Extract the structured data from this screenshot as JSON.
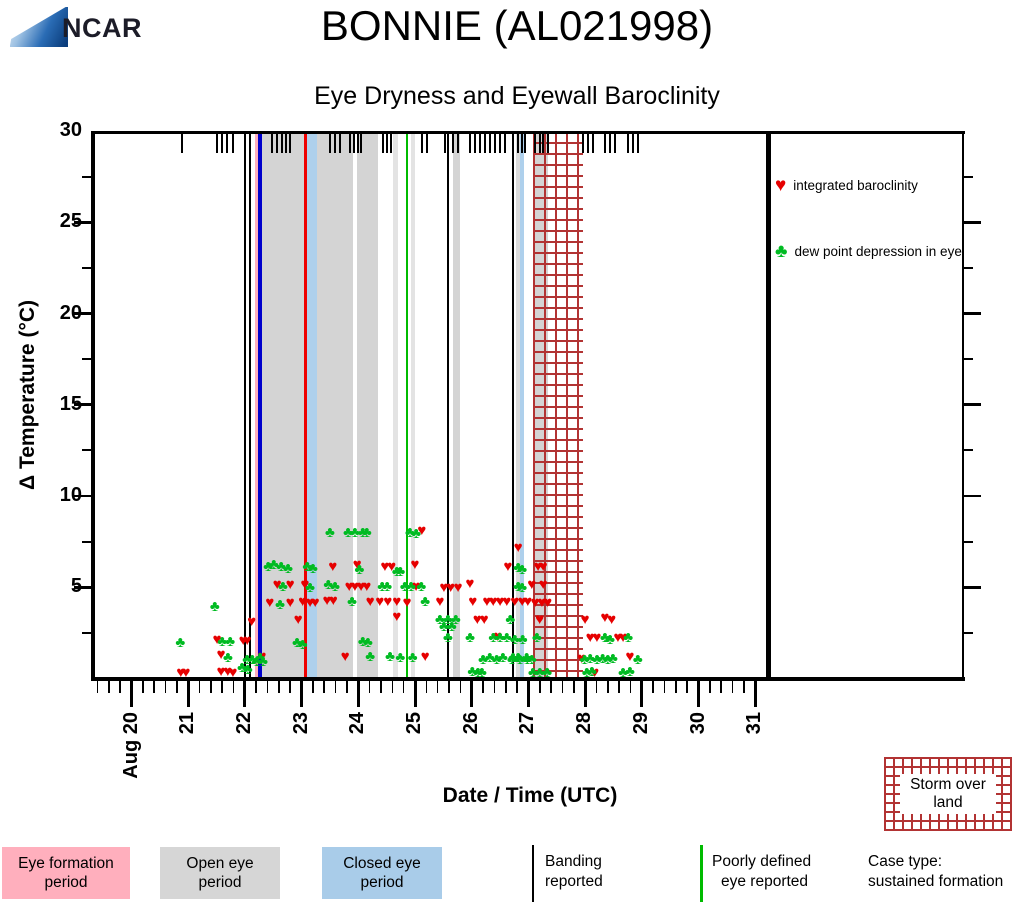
{
  "header": {
    "logo_text": "NCAR",
    "title": "BONNIE (AL021998)",
    "subtitle": "Eye Dryness and Eyewall Baroclinity"
  },
  "legend": {
    "items": [
      {
        "symbol": "heart",
        "label": "integrated baroclinity",
        "color": "#e60000"
      },
      {
        "symbol": "club",
        "label": "dew point depression in eye",
        "color": "#00bb22"
      }
    ]
  },
  "storm_box": {
    "lines": [
      "Storm over",
      "land"
    ],
    "hatch_color": "#b23333"
  },
  "bottom_legend": {
    "items": [
      {
        "type": "box",
        "color": "#ffafbd",
        "lines": [
          "Eye formation",
          "period"
        ]
      },
      {
        "type": "box",
        "color": "#d6d6d6",
        "lines": [
          "Open eye",
          "period"
        ]
      },
      {
        "type": "box",
        "color": "#a9cce9",
        "lines": [
          "Closed eye",
          "period"
        ]
      },
      {
        "type": "line",
        "color": "#000000",
        "lines": [
          "Banding",
          "reported"
        ]
      },
      {
        "type": "line",
        "color": "#00bb00",
        "lines": [
          "Poorly defined",
          "eye reported"
        ]
      },
      {
        "type": "text",
        "color": "",
        "lines": [
          "Case type:",
          "sustained formation"
        ]
      }
    ]
  },
  "chart_data": {
    "type": "scatter",
    "title": "BONNIE (AL021998)",
    "subtitle": "Eye Dryness and Eyewall Baroclinity",
    "xlabel": "Date / Time (UTC)",
    "ylabel": "Δ Temperature (°C)",
    "ylim": [
      0,
      30
    ],
    "y_major_step": 5,
    "y_minor_step": 2.5,
    "y_tick_labels": [
      "5",
      "10",
      "15",
      "20",
      "25",
      "30"
    ],
    "x_day_labels": [
      "Aug 20",
      "21",
      "22",
      "23",
      "24",
      "25",
      "26",
      "27",
      "28",
      "29",
      "30",
      "31"
    ],
    "x_minor_per_day": 5,
    "grid": false,
    "legend_position": "right-inside",
    "bands": [
      {
        "kind": "eye_formation_period",
        "from_day": 2.18,
        "to_day": 2.25,
        "color": "#ffafbd"
      },
      {
        "kind": "open_eye_period",
        "from_day": 2.31,
        "to_day": 3.9,
        "color": "#d4d4d4"
      },
      {
        "kind": "open_eye_period",
        "from_day": 3.97,
        "to_day": 4.35,
        "color": "#d4d4d4"
      },
      {
        "kind": "open_eye_period",
        "from_day": 4.61,
        "to_day": 4.7,
        "color": "#e3e3e3"
      },
      {
        "kind": "open_eye_period",
        "from_day": 4.93,
        "to_day": 5.0,
        "color": "#e3e3e3"
      },
      {
        "kind": "open_eye_period",
        "from_day": 5.67,
        "to_day": 5.79,
        "color": "#d4d4d4"
      },
      {
        "kind": "open_eye_period",
        "from_day": 6.79,
        "to_day": 6.86,
        "color": "#dcdcdc"
      },
      {
        "kind": "open_eye_period",
        "from_day": 7.08,
        "to_day": 7.34,
        "color": "#d4d4d4"
      },
      {
        "kind": "closed_eye_period",
        "from_day": 3.09,
        "to_day": 3.27,
        "color": "#aed0ec"
      },
      {
        "kind": "closed_eye_period",
        "from_day": 6.86,
        "to_day": 6.93,
        "color": "#aed0ec"
      }
    ],
    "event_lines": [
      {
        "name": "banding-line",
        "day": 2.0,
        "color": "#000000",
        "width": 2
      },
      {
        "name": "banding-line",
        "day": 2.09,
        "color": "#000000",
        "width": 2
      },
      {
        "name": "banding-line",
        "day": 5.58,
        "color": "#000000",
        "width": 2
      },
      {
        "name": "banding-line",
        "day": 6.73,
        "color": "#000000",
        "width": 2
      },
      {
        "name": "blue-event-line",
        "day": 2.275,
        "color": "#0000cc",
        "width": 4
      },
      {
        "name": "red-event-line",
        "day": 3.06,
        "color": "#ee0000",
        "width": 3
      },
      {
        "name": "poorly-defined-eye-line",
        "day": 4.855,
        "color": "#00bb00",
        "width": 1.6
      },
      {
        "name": "case-end-line",
        "day": 11.226,
        "color": "#000000",
        "width": 5
      }
    ],
    "storm_over_land_region": {
      "from_day": 7.08,
      "to_day": 7.97,
      "hatch_color": "#b23333"
    },
    "observation_rug_days": [
      0.89,
      1.51,
      1.6,
      1.68,
      1.79,
      2.48,
      2.57,
      2.65,
      2.72,
      2.8,
      3.5,
      3.59,
      3.68,
      3.85,
      3.92,
      3.99,
      4.05,
      4.44,
      4.51,
      4.58,
      5.12,
      5.21,
      5.53,
      5.67,
      5.76,
      5.97,
      6.06,
      6.15,
      6.23,
      6.32,
      6.41,
      6.5,
      6.59,
      6.82,
      6.89,
      6.94,
      7.12,
      7.2,
      7.26,
      7.34,
      7.97,
      8.05,
      8.14,
      8.35,
      8.44,
      8.53,
      8.76,
      8.85,
      8.93
    ],
    "series": [
      {
        "name": "integrated baroclinity",
        "symbol": "heart",
        "color": "#e60000",
        "points": [
          [
            0.87,
            0.3
          ],
          [
            0.96,
            0.3
          ],
          [
            1.51,
            2.1
          ],
          [
            1.58,
            1.3
          ],
          [
            1.58,
            0.35
          ],
          [
            1.7,
            0.35
          ],
          [
            1.79,
            0.3
          ],
          [
            1.97,
            2.05
          ],
          [
            2.04,
            2.05
          ],
          [
            2.12,
            3.1
          ],
          [
            2.3,
            1.2
          ],
          [
            2.44,
            4.15
          ],
          [
            2.57,
            5.1
          ],
          [
            2.8,
            5.1
          ],
          [
            2.8,
            4.15
          ],
          [
            2.94,
            3.2
          ],
          [
            3.02,
            4.2
          ],
          [
            3.06,
            5.1
          ],
          [
            3.15,
            4.15
          ],
          [
            3.24,
            4.15
          ],
          [
            3.45,
            4.25
          ],
          [
            3.56,
            4.25
          ],
          [
            3.55,
            6.1
          ],
          [
            3.77,
            1.2
          ],
          [
            3.84,
            5.0
          ],
          [
            3.94,
            5.0
          ],
          [
            3.98,
            6.2
          ],
          [
            4.05,
            5.0
          ],
          [
            4.15,
            5.0
          ],
          [
            4.21,
            4.2
          ],
          [
            4.38,
            4.2
          ],
          [
            4.47,
            6.1
          ],
          [
            4.52,
            4.2
          ],
          [
            4.59,
            6.1
          ],
          [
            4.68,
            4.2
          ],
          [
            4.68,
            3.35
          ],
          [
            4.86,
            4.15
          ],
          [
            5.0,
            6.2
          ],
          [
            5.02,
            5.0
          ],
          [
            5.12,
            8.1
          ],
          [
            5.18,
            1.2
          ],
          [
            5.44,
            4.2
          ],
          [
            5.51,
            4.95
          ],
          [
            5.63,
            4.95
          ],
          [
            5.76,
            4.95
          ],
          [
            5.97,
            5.2
          ],
          [
            6.02,
            4.2
          ],
          [
            6.1,
            3.2
          ],
          [
            6.22,
            3.2
          ],
          [
            6.27,
            4.2
          ],
          [
            6.38,
            4.2
          ],
          [
            6.46,
            2.25
          ],
          [
            6.5,
            4.2
          ],
          [
            6.62,
            4.2
          ],
          [
            6.64,
            6.1
          ],
          [
            6.76,
            4.2
          ],
          [
            6.82,
            7.15
          ],
          [
            6.89,
            4.2
          ],
          [
            6.99,
            4.2
          ],
          [
            7.06,
            5.1
          ],
          [
            7.12,
            4.15
          ],
          [
            7.17,
            6.1
          ],
          [
            7.2,
            3.2
          ],
          [
            7.24,
            4.15
          ],
          [
            7.26,
            6.1
          ],
          [
            7.26,
            5.1
          ],
          [
            7.34,
            4.15
          ],
          [
            7.94,
            1.05
          ],
          [
            8.0,
            3.2
          ],
          [
            8.09,
            2.2
          ],
          [
            8.17,
            0.3
          ],
          [
            8.21,
            2.2
          ],
          [
            8.35,
            3.3
          ],
          [
            8.47,
            3.2
          ],
          [
            8.58,
            2.2
          ],
          [
            8.67,
            2.2
          ],
          [
            8.79,
            1.2
          ]
        ]
      },
      {
        "name": "dew point depression in eye",
        "symbol": "club",
        "color": "#00bb22",
        "points": [
          [
            0.86,
            1.95
          ],
          [
            1.47,
            3.9
          ],
          [
            1.6,
            2.0
          ],
          [
            1.7,
            1.1
          ],
          [
            1.74,
            2.0
          ],
          [
            1.95,
            0.6
          ],
          [
            2.04,
            1.0
          ],
          [
            2.05,
            0.45
          ],
          [
            2.13,
            1.0
          ],
          [
            2.21,
            0.9
          ],
          [
            2.27,
            1.1
          ],
          [
            2.32,
            0.9
          ],
          [
            2.41,
            6.1
          ],
          [
            2.51,
            6.2
          ],
          [
            2.62,
            4.05
          ],
          [
            2.64,
            6.1
          ],
          [
            2.67,
            5.0
          ],
          [
            2.76,
            6.0
          ],
          [
            2.92,
            1.95
          ],
          [
            3.02,
            1.85
          ],
          [
            3.1,
            6.1
          ],
          [
            3.15,
            4.95
          ],
          [
            3.2,
            6.0
          ],
          [
            3.47,
            5.1
          ],
          [
            3.5,
            8.0
          ],
          [
            3.59,
            5.0
          ],
          [
            3.82,
            8.0
          ],
          [
            3.89,
            4.2
          ],
          [
            3.94,
            8.0
          ],
          [
            4.02,
            5.95
          ],
          [
            4.08,
            8.0
          ],
          [
            4.08,
            2.0
          ],
          [
            4.15,
            7.95
          ],
          [
            4.17,
            1.95
          ],
          [
            4.21,
            1.2
          ],
          [
            4.42,
            5.0
          ],
          [
            4.51,
            5.0
          ],
          [
            4.56,
            1.2
          ],
          [
            4.68,
            5.85
          ],
          [
            4.74,
            5.85
          ],
          [
            4.74,
            1.15
          ],
          [
            4.82,
            5.0
          ],
          [
            4.91,
            8.0
          ],
          [
            4.93,
            5.0
          ],
          [
            4.96,
            1.15
          ],
          [
            5.02,
            7.9
          ],
          [
            5.11,
            5.0
          ],
          [
            5.18,
            4.2
          ],
          [
            5.44,
            3.2
          ],
          [
            5.51,
            2.8
          ],
          [
            5.58,
            3.2
          ],
          [
            5.58,
            2.2
          ],
          [
            5.65,
            2.8
          ],
          [
            5.72,
            3.2
          ],
          [
            5.97,
            2.2
          ],
          [
            6.01,
            0.35
          ],
          [
            6.11,
            0.3
          ],
          [
            6.18,
            0.3
          ],
          [
            6.2,
            1.0
          ],
          [
            6.32,
            1.1
          ],
          [
            6.38,
            2.2
          ],
          [
            6.44,
            1.0
          ],
          [
            6.5,
            2.2
          ],
          [
            6.55,
            1.1
          ],
          [
            6.62,
            2.2
          ],
          [
            6.68,
            3.2
          ],
          [
            6.71,
            1.0
          ],
          [
            6.73,
            1.1
          ],
          [
            6.76,
            2.1
          ],
          [
            6.82,
            6.05
          ],
          [
            6.82,
            5.0
          ],
          [
            6.82,
            1.1
          ],
          [
            6.85,
            1.0
          ],
          [
            6.89,
            5.95
          ],
          [
            6.89,
            4.95
          ],
          [
            6.9,
            2.1
          ],
          [
            6.97,
            1.1
          ],
          [
            6.98,
            1.0
          ],
          [
            7.06,
            1.0
          ],
          [
            7.08,
            0.3
          ],
          [
            7.15,
            2.2
          ],
          [
            7.2,
            0.3
          ],
          [
            7.33,
            0.3
          ],
          [
            7.99,
            1.0
          ],
          [
            8.03,
            0.3
          ],
          [
            8.09,
            1.05
          ],
          [
            8.12,
            0.35
          ],
          [
            8.21,
            1.0
          ],
          [
            8.31,
            1.05
          ],
          [
            8.35,
            2.2
          ],
          [
            8.4,
            1.0
          ],
          [
            8.44,
            2.1
          ],
          [
            8.49,
            1.05
          ],
          [
            8.67,
            0.3
          ],
          [
            8.76,
            2.2
          ],
          [
            8.79,
            0.35
          ],
          [
            8.93,
            1.0
          ]
        ]
      }
    ],
    "annotations": {
      "case_type": "Case type: sustained formation",
      "storm_over_land_label": "Storm over land"
    }
  }
}
